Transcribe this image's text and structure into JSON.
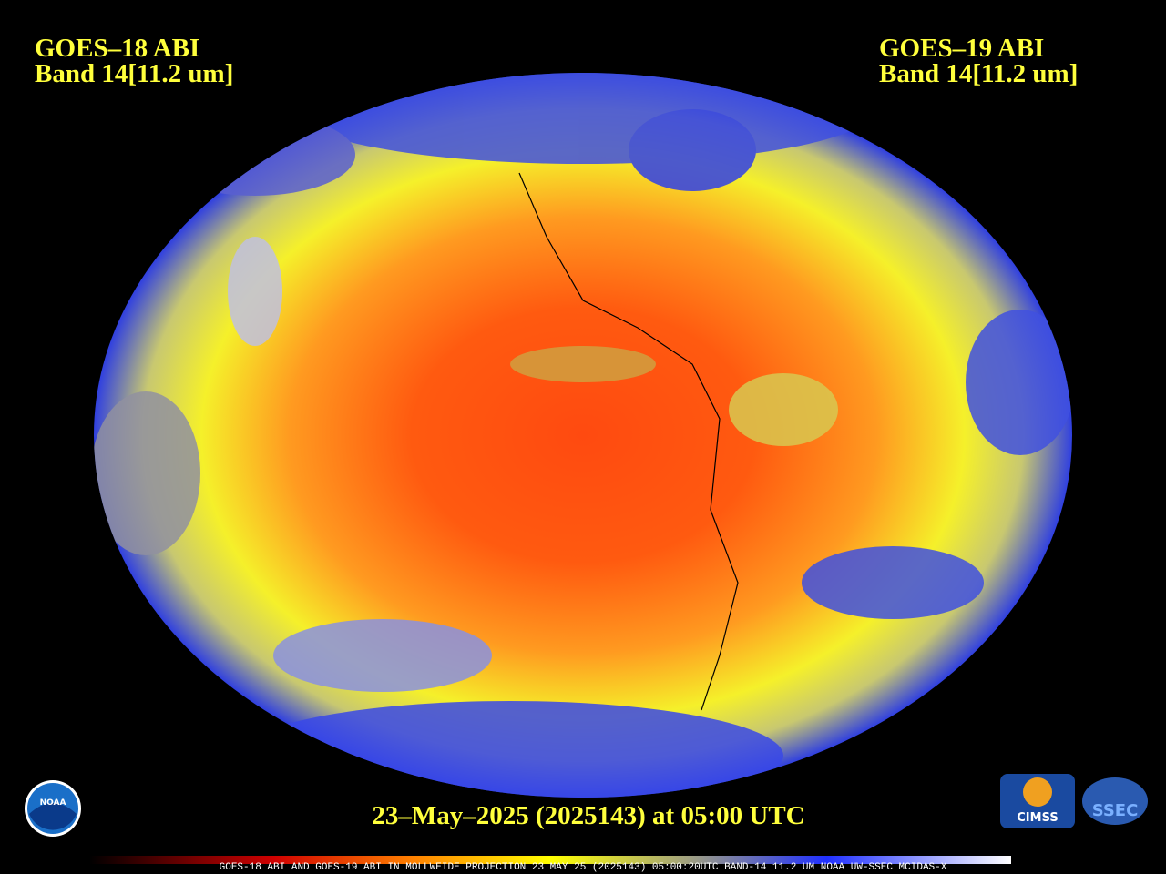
{
  "header": {
    "left": {
      "satellite": "GOES–18 ABI",
      "band": "Band 14[11.2 um]"
    },
    "right": {
      "satellite": "GOES–19 ABI",
      "band": "Band 14[11.2 um]"
    }
  },
  "timestamp": "23–May–2025 (2025143) at 05:00 UTC",
  "footer": "GOES-18 ABI AND GOES-19 ABI IN MOLLWEIDE PROJECTION 23 MAY 25 (2025143) 05:00:20UTC BAND-14 11.2 UM NOAA UW-SSEC MCIDAS-X",
  "logos": {
    "noaa": "NOAA",
    "cimss": "CIMSS",
    "ssec": "SSEC"
  }
}
